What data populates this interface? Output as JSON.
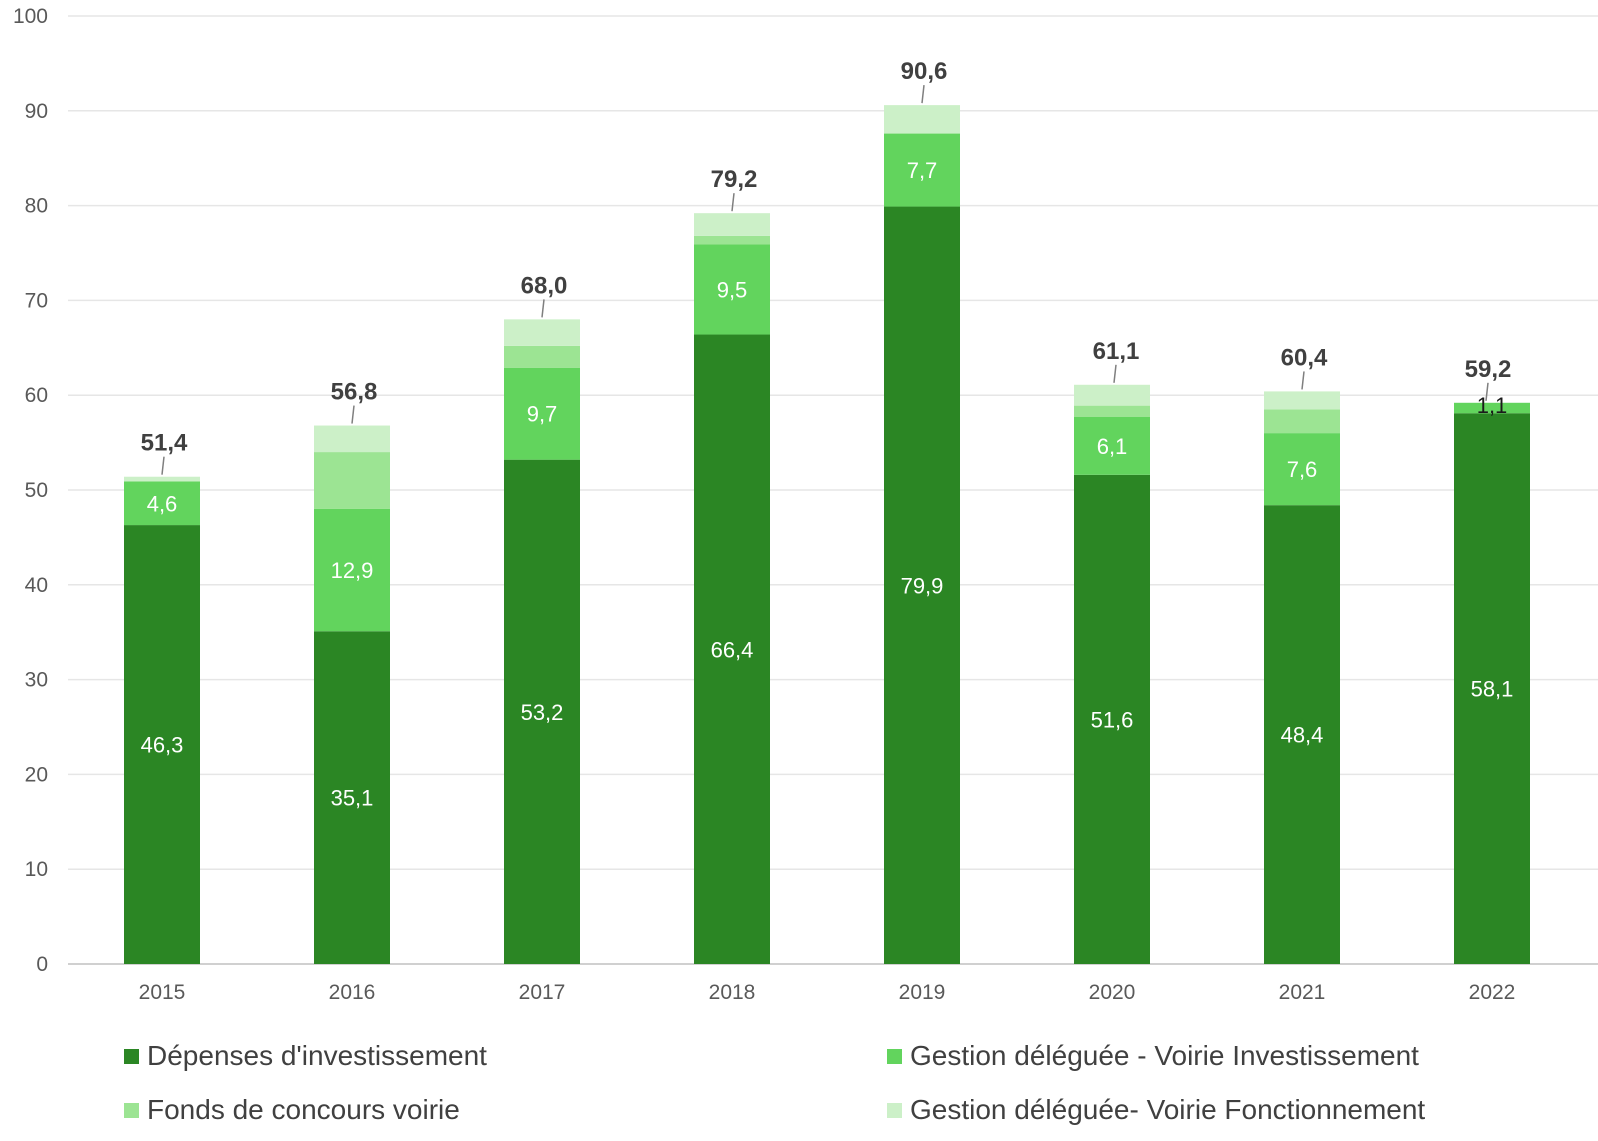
{
  "chart_data": {
    "type": "bar",
    "stacked": true,
    "categories": [
      "2015",
      "2016",
      "2017",
      "2018",
      "2019",
      "2020",
      "2021",
      "2022"
    ],
    "ylim": [
      0,
      100
    ],
    "yticks": [
      0,
      10,
      20,
      30,
      40,
      50,
      60,
      70,
      80,
      90,
      100
    ],
    "grid": true,
    "legend_position": "bottom",
    "series": [
      {
        "name": "Dépenses d'investissement",
        "color": "#2b8624",
        "values": [
          46.3,
          35.1,
          53.2,
          66.4,
          79.9,
          51.6,
          48.4,
          58.1
        ],
        "labels": [
          "46,3",
          "35,1",
          "53,2",
          "66,4",
          "79,9",
          "51,6",
          "48,4",
          "58,1"
        ]
      },
      {
        "name": "Gestion déléguée - Voirie Investissement",
        "color": "#62d45d",
        "values": [
          4.6,
          12.9,
          9.7,
          9.5,
          7.7,
          6.1,
          7.6,
          1.1
        ],
        "labels": [
          "4,6",
          "12,9",
          "9,7",
          "9,5",
          "7,7",
          "6,1",
          "7,6",
          "1,1"
        ]
      },
      {
        "name": "Fonds de concours voirie",
        "color": "#9ce493",
        "values": [
          0.0,
          6.0,
          2.3,
          0.9,
          0.0,
          1.2,
          2.5,
          0.0
        ],
        "labels": [
          "",
          "",
          "",
          "",
          "",
          "",
          "",
          ""
        ]
      },
      {
        "name": "Gestion déléguée- Voirie Fonctionnement",
        "color": "#ccf0c8",
        "values": [
          0.5,
          2.8,
          2.8,
          2.4,
          3.0,
          2.2,
          1.9,
          0.0
        ],
        "labels": [
          "",
          "",
          "",
          "",
          "",
          "",
          "",
          ""
        ]
      }
    ],
    "totals": [
      51.4,
      56.8,
      68.0,
      79.2,
      90.6,
      61.1,
      60.4,
      59.2
    ],
    "total_labels": [
      "51,4",
      "56,8",
      "68,0",
      "79,2",
      "90,6",
      "61,1",
      "60,4",
      "59,2"
    ],
    "title": "",
    "xlabel": "",
    "ylabel": ""
  }
}
